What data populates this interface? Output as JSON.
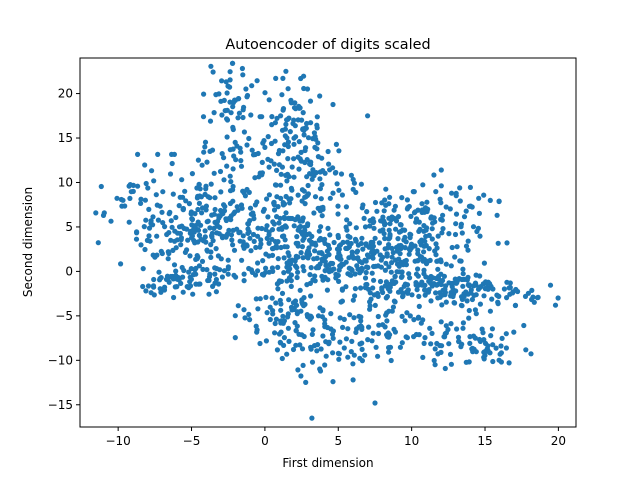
{
  "chart_data": {
    "type": "scatter",
    "title": "Autoencoder of digits scaled",
    "xlabel": "First dimension",
    "ylabel": "Second dimension",
    "xlim": [
      -12.6,
      21.2
    ],
    "ylim": [
      -17.5,
      24.0
    ],
    "xticks": [
      -10,
      -5,
      0,
      5,
      10,
      15,
      20
    ],
    "yticks": [
      -15,
      -10,
      -5,
      0,
      5,
      10,
      15,
      20
    ],
    "grid": false,
    "color": "#1f77b4",
    "clusters": [
      {
        "cx": -2.2,
        "cy": 19.0,
        "sx": 0.9,
        "sy": 2.0,
        "n": 45
      },
      {
        "cx": -2.0,
        "cy": 13.0,
        "sx": 1.2,
        "sy": 2.5,
        "n": 50
      },
      {
        "cx": -3.0,
        "cy": 6.0,
        "sx": 1.6,
        "sy": 2.2,
        "n": 120
      },
      {
        "cx": -5.5,
        "cy": 3.5,
        "sx": 1.5,
        "sy": 2.0,
        "n": 70
      },
      {
        "cx": -8.0,
        "cy": 7.0,
        "sx": 1.6,
        "sy": 2.8,
        "n": 60
      },
      {
        "cx": -4.5,
        "cy": -0.8,
        "sx": 1.4,
        "sy": 0.8,
        "n": 55
      },
      {
        "cx": -7.5,
        "cy": -1.5,
        "sx": 0.9,
        "sy": 1.0,
        "n": 15
      },
      {
        "cx": 2.0,
        "cy": 17.0,
        "sx": 1.2,
        "sy": 2.5,
        "n": 80
      },
      {
        "cx": 2.5,
        "cy": 10.0,
        "sx": 1.6,
        "sy": 3.0,
        "n": 110
      },
      {
        "cx": 1.0,
        "cy": 4.0,
        "sx": 1.6,
        "sy": 2.0,
        "n": 90
      },
      {
        "cx": 5.0,
        "cy": 2.5,
        "sx": 2.5,
        "sy": 1.3,
        "n": 120
      },
      {
        "cx": 3.0,
        "cy": 0.0,
        "sx": 2.5,
        "sy": 0.8,
        "n": 70
      },
      {
        "cx": 1.5,
        "cy": -5.0,
        "sx": 1.6,
        "sy": 1.8,
        "n": 80
      },
      {
        "cx": 3.5,
        "cy": -9.0,
        "sx": 1.5,
        "sy": 1.8,
        "n": 45
      },
      {
        "cx": 5.5,
        "cy": -6.0,
        "sx": 1.5,
        "sy": 1.5,
        "n": 35
      },
      {
        "cx": 9.0,
        "cy": 2.0,
        "sx": 2.2,
        "sy": 1.8,
        "n": 110
      },
      {
        "cx": 8.5,
        "cy": 7.0,
        "sx": 1.6,
        "sy": 2.0,
        "n": 60
      },
      {
        "cx": 12.0,
        "cy": 6.0,
        "sx": 1.8,
        "sy": 2.2,
        "n": 70
      },
      {
        "cx": 11.5,
        "cy": 1.0,
        "sx": 2.0,
        "sy": 2.0,
        "n": 50
      },
      {
        "cx": 11.0,
        "cy": -1.8,
        "sx": 2.6,
        "sy": 0.7,
        "n": 120
      },
      {
        "cx": 15.5,
        "cy": -2.5,
        "sx": 1.8,
        "sy": 0.9,
        "n": 45
      },
      {
        "cx": 10.0,
        "cy": -6.5,
        "sx": 2.5,
        "sy": 1.6,
        "n": 80
      },
      {
        "cx": 14.5,
        "cy": -8.5,
        "sx": 1.7,
        "sy": 1.1,
        "n": 60
      },
      {
        "cx": 18.5,
        "cy": -3.0,
        "sx": 0.8,
        "sy": 0.6,
        "n": 6
      }
    ],
    "outliers": [
      [
        3.2,
        -16.5
      ],
      [
        7.5,
        -14.8
      ],
      [
        -11.0,
        6.3
      ],
      [
        19.8,
        -3.8
      ],
      [
        16.5,
        3.2
      ],
      [
        7.0,
        17.5
      ]
    ]
  }
}
